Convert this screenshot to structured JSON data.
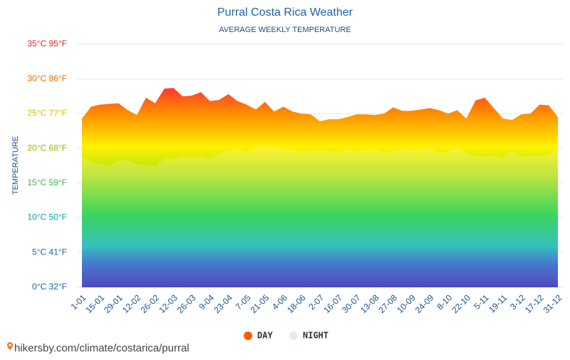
{
  "chart_data": {
    "type": "area",
    "title": "Purral Costa Rica Weather",
    "subtitle": "AVERAGE WEEKLY TEMPERATURE",
    "y_label": "TEMPERATURE",
    "source": "hikersby.com/climate/costarica/purral",
    "categories": [
      "1-01",
      null,
      "15-01",
      null,
      "29-01",
      null,
      "12-02",
      null,
      "26-02",
      null,
      "12-03",
      null,
      "26-03",
      null,
      "9-04",
      null,
      "23-04",
      null,
      "7-05",
      null,
      "21-05",
      null,
      "4-06",
      null,
      "18-06",
      null,
      "2-07",
      null,
      "16-07",
      null,
      "30-07",
      null,
      "13-08",
      null,
      "27-08",
      null,
      "10-09",
      null,
      "24-09",
      null,
      "8-10",
      null,
      "22-10",
      null,
      "5-11",
      null,
      "19-11",
      null,
      "3-12",
      null,
      "17-12",
      null,
      "31-12"
    ],
    "series": [
      {
        "name": "DAY",
        "color": "#ff5a0a",
        "values": [
          24.3,
          26,
          26.3,
          26.4,
          26.5,
          25.5,
          24.8,
          27.3,
          26.5,
          28.6,
          28.7,
          27.5,
          27.6,
          28.1,
          26.8,
          27,
          27.8,
          26.8,
          26.3,
          25.6,
          26.7,
          25.3,
          26,
          25.3,
          25,
          24.9,
          23.9,
          24.2,
          24.2,
          24.5,
          24.9,
          24.9,
          24.8,
          25,
          25.9,
          25.4,
          25.4,
          25.6,
          25.8,
          25.5,
          25,
          25.5,
          24.3,
          26.9,
          27.3,
          25.8,
          24.3,
          24.1,
          24.9,
          25,
          26.3,
          26.2,
          24.5
        ]
      },
      {
        "name": "NIGHT",
        "color": "#e4ebf5",
        "values": [
          18.8,
          18,
          17.8,
          17.5,
          18.2,
          18.3,
          17.6,
          17.6,
          17.4,
          18.5,
          18.5,
          18.9,
          18.6,
          18.9,
          18.5,
          19.2,
          19.8,
          19.9,
          19.5,
          20.1,
          20.5,
          20.1,
          19.9,
          19.8,
          19.6,
          19.6,
          19.7,
          19.6,
          19.4,
          19.8,
          19.6,
          19.9,
          19.9,
          19.4,
          19.6,
          19.9,
          19.8,
          19.9,
          20.1,
          19.4,
          19.5,
          20.1,
          19.4,
          18.8,
          18.8,
          19,
          18.6,
          19.6,
          18.8,
          18.9,
          18.9,
          19,
          20.2
        ]
      }
    ],
    "ylim": [
      0,
      35
    ],
    "yticks": [
      {
        "value": 0,
        "label": "0°C 32°F"
      },
      {
        "value": 5,
        "label": "5°C 41°F"
      },
      {
        "value": 10,
        "label": "10°C 50°F"
      },
      {
        "value": 15,
        "label": "15°C 59°F"
      },
      {
        "value": 20,
        "label": "20°C 68°F"
      },
      {
        "value": 25,
        "label": "25°C 77°F"
      },
      {
        "value": 30,
        "label": "30°C 86°F"
      },
      {
        "value": 35,
        "label": "35°C 95°F"
      }
    ],
    "grid": true
  }
}
